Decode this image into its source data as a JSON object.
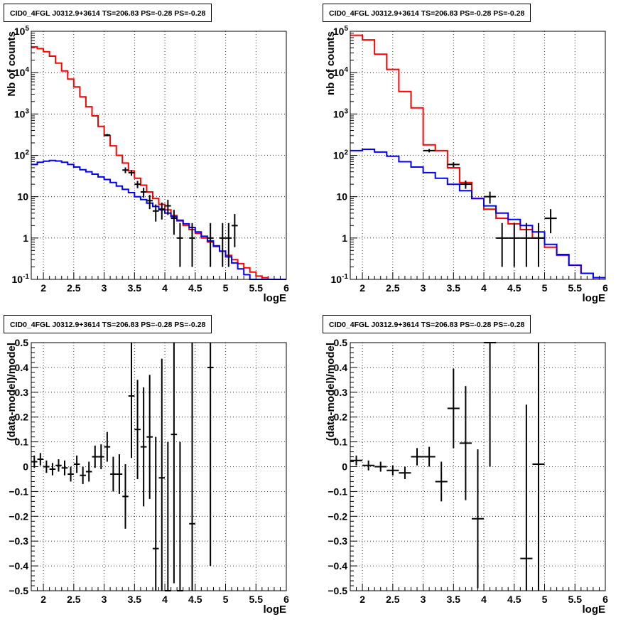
{
  "page_title": "CID0_4FGL J0312.9+3614 TS=206.83 PS=-0.28 PS=-0.28",
  "colors": {
    "data": "#000000",
    "total_model": "#ff0000",
    "source_model": "#0000ff",
    "grid": "#000000"
  },
  "chart_data": [
    {
      "type": "line",
      "title": "CID0_4FGL J0312.9+3614 TS=206.83 PS=-0.28 PS=-0.28",
      "xlabel": "logE",
      "ylabel": "Nb of counts",
      "log_y": true,
      "grid": true,
      "xlim": [
        1.8,
        6.0
      ],
      "ylim": [
        0.1,
        100000
      ],
      "xticks": [
        "2",
        "2.5",
        "3",
        "3.5",
        "4",
        "4.5",
        "5",
        "5.5",
        "6"
      ],
      "yticks": [
        "10^{-1}",
        "1",
        "10",
        "10^{2}",
        "10^{3}",
        "10^{4}",
        "10^{5}"
      ],
      "bin_width": 0.1,
      "series": [
        {
          "x": [
            1.8,
            1.9,
            2.0,
            2.1,
            2.2,
            2.3,
            2.4,
            2.5,
            2.6,
            2.7,
            2.8,
            2.9,
            3.0,
            3.1,
            3.2,
            3.3,
            3.4,
            3.5,
            3.6,
            3.7,
            3.8,
            3.9,
            4.0,
            4.1,
            4.2,
            4.3,
            4.4,
            4.5,
            4.6,
            4.7,
            4.8,
            4.9,
            5.0,
            5.1,
            5.2,
            5.3,
            5.4,
            5.5,
            5.6,
            5.7,
            5.8,
            5.9
          ],
          "values": [
            42000,
            38000,
            32000,
            25000,
            17000,
            11000,
            7000,
            4500,
            2600,
            1500,
            900,
            500,
            300,
            170,
            100,
            65,
            42,
            28,
            19,
            13,
            9,
            6.5,
            4.8,
            3.5,
            2.6,
            2.0,
            1.6,
            1.3,
            1.0,
            0.8,
            0.62,
            0.48,
            0.38,
            0.3,
            0.24,
            0.19,
            0.15,
            0.12,
            0.11,
            0.1,
            0.1,
            0.1
          ]
        },
        {
          "x": [
            1.8,
            1.9,
            2.0,
            2.1,
            2.2,
            2.3,
            2.4,
            2.5,
            2.6,
            2.7,
            2.8,
            2.9,
            3.0,
            3.1,
            3.2,
            3.3,
            3.4,
            3.5,
            3.6,
            3.7,
            3.8,
            3.9,
            4.0,
            4.1,
            4.2,
            4.3,
            4.4,
            4.5,
            4.6,
            4.7,
            4.8,
            4.9,
            5.0,
            5.1,
            5.2,
            5.3,
            5.4,
            5.5,
            5.6,
            5.7,
            5.8,
            5.9
          ],
          "values": [
            60,
            68,
            72,
            75,
            73,
            68,
            60,
            52,
            45,
            40,
            35,
            30,
            26,
            22,
            18,
            15,
            12.5,
            10,
            8.5,
            7,
            5.8,
            4.8,
            4,
            3.3,
            2.7,
            2.2,
            1.8,
            1.4,
            1.1,
            0.85,
            0.65,
            0.48,
            0.35,
            0.25,
            0.18,
            0.13,
            0.1,
            0.1,
            0.1,
            0.1,
            0.1,
            0.1
          ]
        }
      ],
      "points": {
        "x": [
          3.05,
          3.35,
          3.45,
          3.55,
          3.65,
          3.75,
          3.85,
          3.95,
          4.05,
          4.15,
          4.25,
          4.45,
          4.75,
          4.95,
          5.05,
          5.15
        ],
        "y": [
          310,
          44,
          38,
          20,
          13,
          8,
          4.5,
          5,
          6,
          3,
          1,
          1,
          1,
          1,
          1,
          2
        ],
        "err_lo": [
          18,
          7,
          6,
          4,
          3.5,
          3,
          2,
          2.2,
          2.4,
          1.8,
          0.8,
          0.8,
          0.8,
          0.8,
          0.8,
          1.4
        ],
        "err_hi": [
          18,
          7,
          6,
          4,
          3.5,
          3,
          2,
          2.2,
          2.4,
          1.8,
          1.3,
          1.3,
          1.3,
          1.3,
          1.3,
          1.8
        ]
      }
    },
    {
      "type": "line",
      "title": "CID0_4FGL J0312.9+3614 TS=206.83 PS=-0.28 PS=-0.28",
      "xlabel": "logE",
      "ylabel": "nb of counts",
      "log_y": true,
      "grid": true,
      "xlim": [
        1.8,
        6.0
      ],
      "ylim": [
        0.1,
        100000
      ],
      "xticks": [
        "2",
        "2.5",
        "3",
        "3.5",
        "4",
        "4.5",
        "5",
        "5.5",
        "6"
      ],
      "yticks": [
        "10^{-1}",
        "1",
        "10",
        "10^{2}",
        "10^{3}",
        "10^{4}",
        "10^{5}"
      ],
      "bin_width": 0.2,
      "series": [
        {
          "x": [
            1.8,
            2.0,
            2.2,
            2.4,
            2.6,
            2.8,
            3.0,
            3.2,
            3.4,
            3.6,
            3.8,
            4.0,
            4.2,
            4.4,
            4.6,
            4.8,
            5.0,
            5.2,
            5.4,
            5.6,
            5.8
          ],
          "values": [
            80000,
            62000,
            28000,
            12000,
            3500,
            1400,
            180,
            130,
            50,
            22,
            9,
            5,
            3,
            2.2,
            1.6,
            1.0,
            0.6,
            0.38,
            0.22,
            0.14,
            0.11
          ]
        },
        {
          "x": [
            1.8,
            2.0,
            2.2,
            2.4,
            2.6,
            2.8,
            3.0,
            3.2,
            3.4,
            3.6,
            3.8,
            4.0,
            4.2,
            4.4,
            4.6,
            4.8,
            5.0,
            5.2,
            5.4,
            5.6,
            5.8
          ],
          "values": [
            130,
            140,
            120,
            95,
            70,
            52,
            38,
            28,
            20,
            14,
            9,
            6,
            4,
            2.8,
            2,
            1.4,
            0.7,
            0.4,
            0.22,
            0.14,
            0.11
          ]
        }
      ],
      "points": {
        "x": [
          3.1,
          3.5,
          3.7,
          4.1,
          4.3,
          4.5,
          4.7,
          4.9,
          5.1
        ],
        "y": [
          130,
          60,
          20,
          10,
          1,
          1,
          1,
          1,
          3
        ],
        "err_lo": [
          12,
          8,
          4.5,
          3.2,
          0.8,
          0.8,
          0.8,
          0.8,
          1.7
        ],
        "err_hi": [
          12,
          8,
          4.5,
          3.2,
          1.3,
          1.3,
          1.3,
          1.3,
          2
        ]
      }
    },
    {
      "type": "scatter",
      "title": "CID0_4FGL J0312.9+3614 TS=206.83 PS=-0.28 PS=-0.28",
      "xlabel": "logE",
      "ylabel": "(data-model)/model",
      "grid": true,
      "xlim": [
        1.8,
        6.0
      ],
      "ylim": [
        -0.5,
        0.5
      ],
      "xticks": [
        "2",
        "2.5",
        "3",
        "3.5",
        "4",
        "4.5",
        "5",
        "5.5",
        "6"
      ],
      "yticks": [
        "−0.5",
        "−0.4",
        "−0.3",
        "−0.2",
        "−0.1",
        "0",
        "0.1",
        "0.2",
        "0.3",
        "0.4",
        "0.5"
      ],
      "bin_width": 0.1,
      "points": {
        "x": [
          1.85,
          1.95,
          2.05,
          2.15,
          2.25,
          2.35,
          2.45,
          2.55,
          2.65,
          2.75,
          2.85,
          2.95,
          3.05,
          3.15,
          3.25,
          3.35,
          3.45,
          3.55,
          3.65,
          3.75,
          3.85,
          3.95,
          4.05,
          4.15,
          4.25,
          4.45,
          4.75
        ],
        "y": [
          0.02,
          0.03,
          0.0,
          -0.01,
          0.005,
          -0.005,
          -0.03,
          0.01,
          -0.035,
          -0.02,
          0.04,
          0.04,
          0.08,
          -0.03,
          -0.03,
          -0.12,
          0.285,
          0.15,
          0.08,
          0.12,
          -0.33,
          -0.045,
          -0.5,
          0.13,
          -0.5,
          -0.23,
          0.4
        ],
        "err": [
          0.025,
          0.025,
          0.025,
          0.025,
          0.025,
          0.03,
          0.03,
          0.035,
          0.035,
          0.04,
          0.045,
          0.05,
          0.06,
          0.07,
          0.08,
          0.13,
          0.25,
          0.2,
          0.24,
          0.25,
          0.45,
          0.48,
          0.6,
          0.6,
          0.6,
          0.8,
          0.8
        ]
      }
    },
    {
      "type": "scatter",
      "title": "CID0_4FGL J0312.9+3614 TS=206.83 PS=-0.28 PS=-0.28",
      "xlabel": "logE",
      "ylabel": "(data-model)/model",
      "grid": true,
      "xlim": [
        1.8,
        6.0
      ],
      "ylim": [
        -0.5,
        0.5
      ],
      "xticks": [
        "2",
        "2.5",
        "3",
        "3.5",
        "4",
        "4.5",
        "5",
        "5.5",
        "6"
      ],
      "yticks": [
        "−0.5",
        "−0.4",
        "−0.3",
        "−0.2",
        "−0.1",
        "0",
        "0.1",
        "0.2",
        "0.3",
        "0.4",
        "0.5"
      ],
      "bin_width": 0.2,
      "points": {
        "x": [
          1.9,
          2.1,
          2.3,
          2.5,
          2.7,
          2.9,
          3.1,
          3.3,
          3.5,
          3.7,
          3.9,
          4.1,
          4.7,
          4.9
        ],
        "y": [
          0.025,
          0.005,
          0.0,
          -0.015,
          -0.025,
          0.04,
          0.04,
          -0.06,
          0.235,
          0.095,
          -0.21,
          0.5,
          -0.37,
          0.01
        ],
        "err": [
          0.02,
          0.02,
          0.02,
          0.02,
          0.025,
          0.035,
          0.04,
          0.08,
          0.16,
          0.23,
          0.28,
          0.5,
          0.62,
          0.55
        ]
      }
    }
  ]
}
